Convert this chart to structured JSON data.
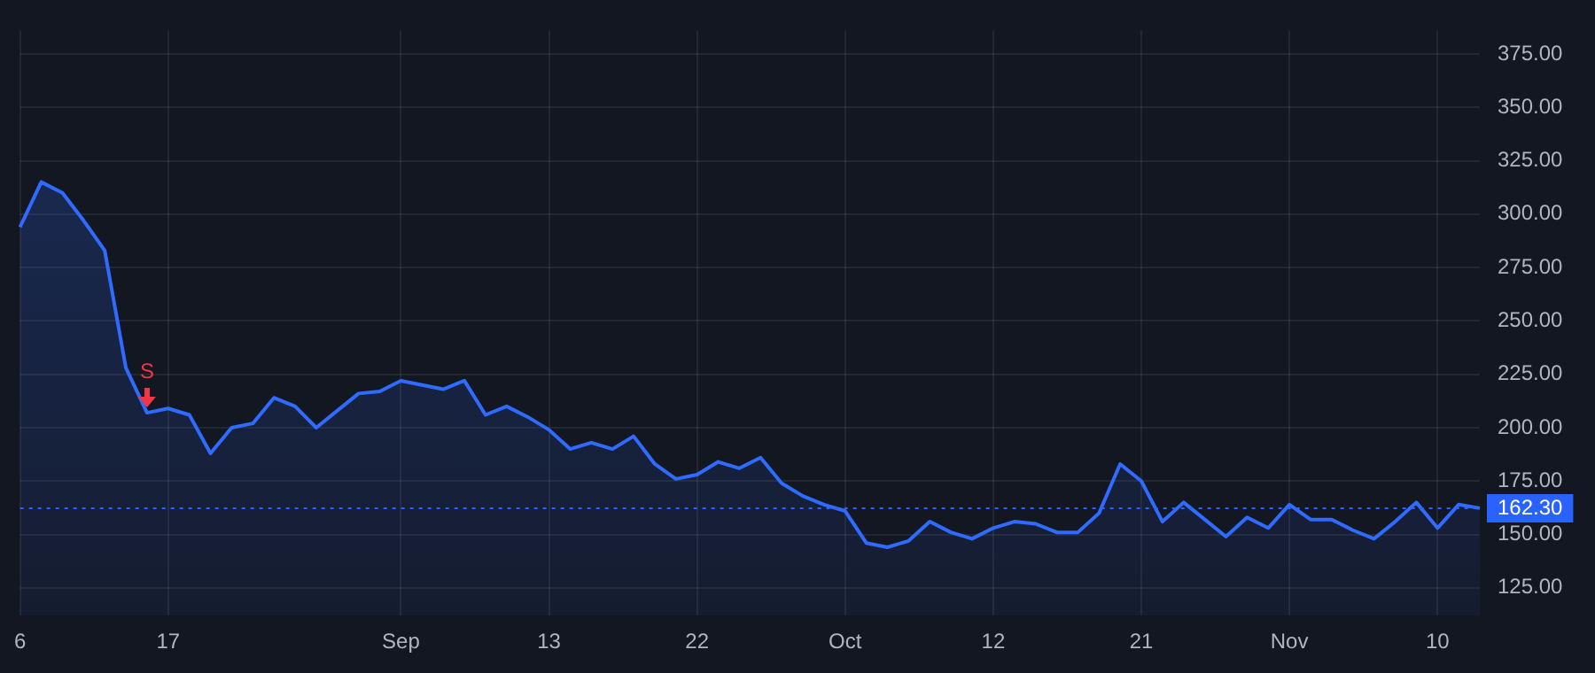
{
  "chart_data": {
    "type": "area",
    "categories": [
      "6",
      null,
      null,
      null,
      null,
      null,
      null,
      "17",
      null,
      null,
      null,
      null,
      null,
      null,
      null,
      null,
      null,
      null,
      "Sep",
      null,
      null,
      null,
      null,
      null,
      null,
      "13",
      null,
      null,
      null,
      null,
      null,
      null,
      "22",
      null,
      null,
      null,
      null,
      null,
      null,
      "Oct",
      null,
      null,
      null,
      null,
      null,
      null,
      "12",
      null,
      null,
      null,
      null,
      null,
      null,
      "21",
      null,
      null,
      null,
      null,
      null,
      null,
      "Nov",
      null,
      null,
      null,
      null,
      null,
      null,
      "10",
      null,
      null
    ],
    "series": [
      {
        "color": "#2f6bff",
        "values": [
          294,
          315,
          310,
          297,
          283,
          228,
          207,
          209,
          206,
          188,
          200,
          202,
          214,
          210,
          200,
          208,
          216,
          217,
          222,
          220,
          218,
          222,
          206,
          210,
          205,
          199,
          190,
          193,
          190,
          196,
          183,
          176,
          178,
          184,
          181,
          186,
          174,
          168,
          164,
          161,
          146,
          144,
          147,
          156,
          151,
          148,
          153,
          156,
          155,
          151,
          151,
          160,
          183,
          175,
          156,
          165,
          157,
          149,
          158,
          153,
          164,
          157,
          157,
          152,
          148,
          156,
          165,
          153,
          164,
          162.3
        ]
      }
    ],
    "ylim": [
      112,
      386
    ],
    "yticks": [
      {
        "value": 125,
        "label": "125.00"
      },
      {
        "value": 150,
        "label": "150.00"
      },
      {
        "value": 175,
        "label": "175.00"
      },
      {
        "value": 200,
        "label": "200.00"
      },
      {
        "value": 225,
        "label": "225.00"
      },
      {
        "value": 250,
        "label": "250.00"
      },
      {
        "value": 275,
        "label": "275.00"
      },
      {
        "value": 300,
        "label": "300.00"
      },
      {
        "value": 325,
        "label": "325.00"
      },
      {
        "value": 350,
        "label": "350.00"
      },
      {
        "value": 375,
        "label": "375.00"
      }
    ],
    "ref_lines": [
      {
        "axis": "y",
        "value": 162.3,
        "label": "162.30",
        "color": "#2962ff",
        "line_style": "dotted"
      }
    ],
    "annotations": [
      {
        "text": "S",
        "y": 207
      }
    ],
    "grid": true,
    "legend": false
  }
}
